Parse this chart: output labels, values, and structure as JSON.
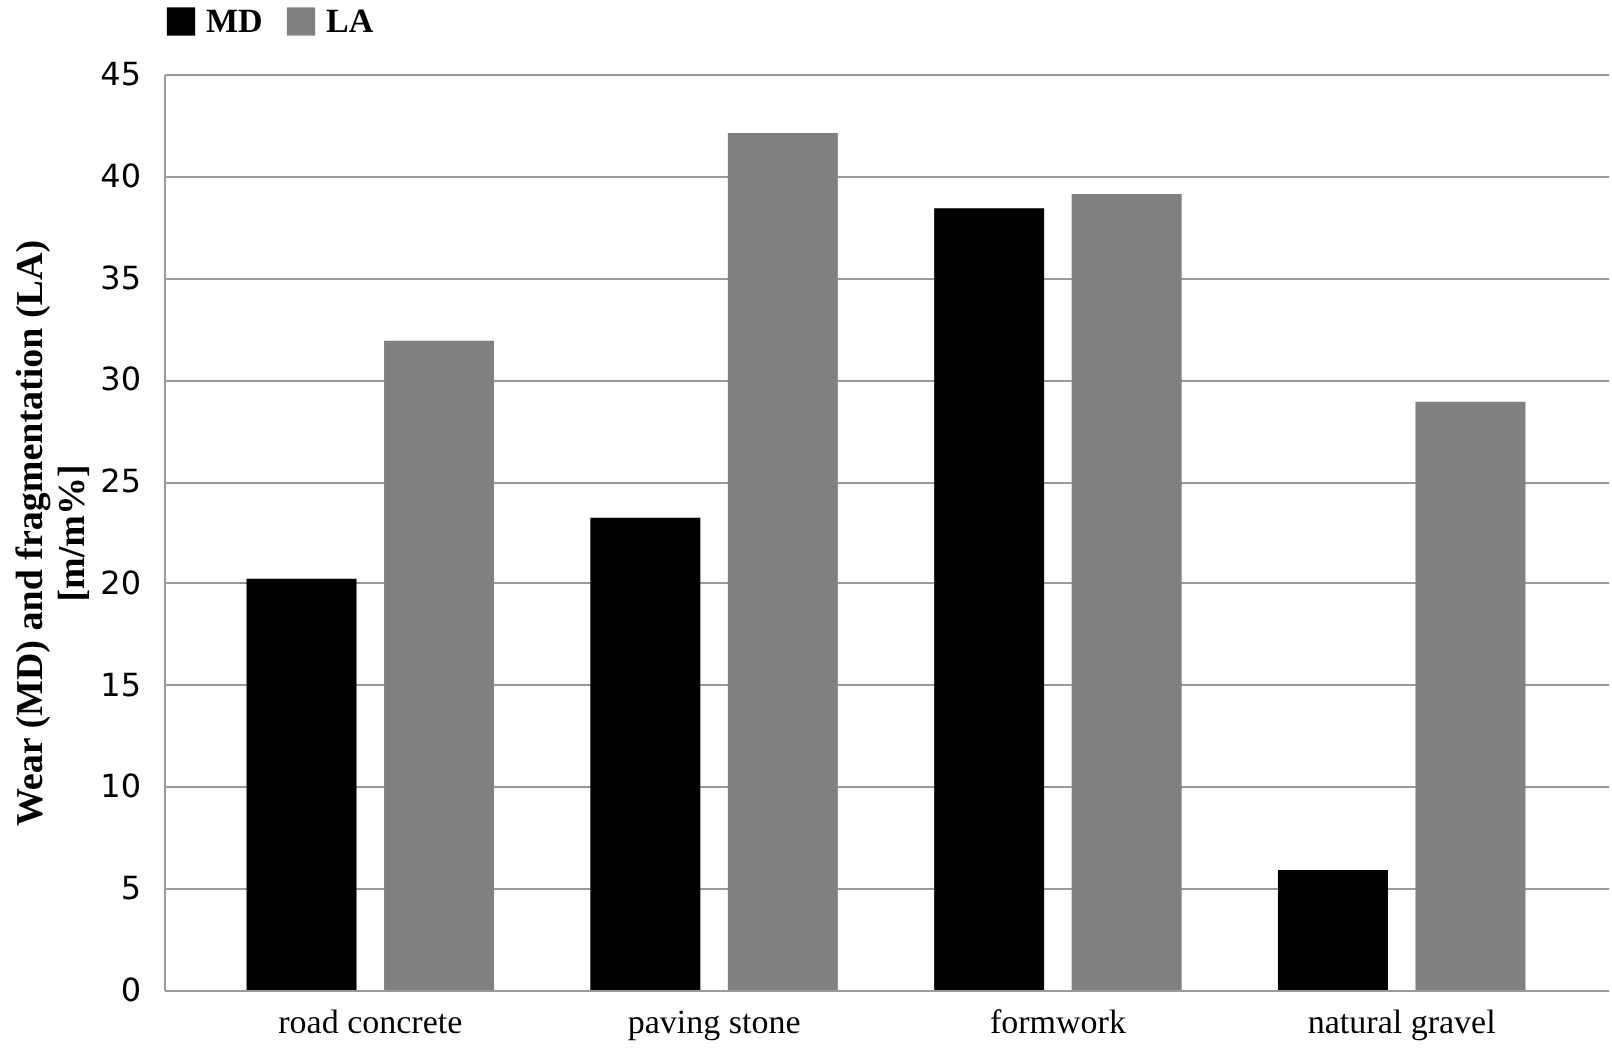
{
  "chart_data": {
    "type": "bar",
    "ylabel": "Wear (MD) and fragmentation (LA)\n[m/m%]",
    "categories": [
      "road concrete",
      "paving stone",
      "formwork",
      "natural gravel"
    ],
    "series": [
      {
        "name": "MD",
        "color": "#000000",
        "values": [
          20.2,
          23.2,
          38.4,
          5.9
        ]
      },
      {
        "name": "LA",
        "color": "#808080",
        "values": [
          31.9,
          42.1,
          39.1,
          28.9
        ]
      }
    ],
    "ylim": [
      0,
      45
    ],
    "yticks": [
      0,
      5,
      10,
      15,
      20,
      25,
      30,
      35,
      40,
      45
    ],
    "grid": "y",
    "legend": "top"
  }
}
